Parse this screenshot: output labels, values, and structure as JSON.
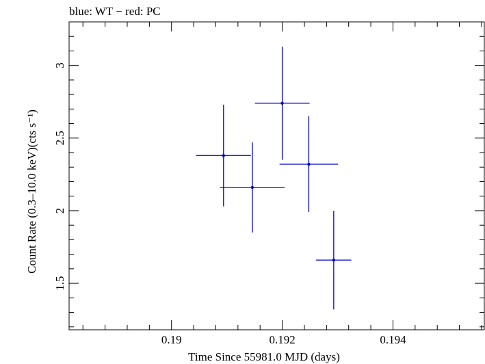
{
  "chart_data": {
    "type": "scatter",
    "title": "blue: WT − red: PC",
    "xlabel": "Time Since 55981.0 MJD (days)",
    "ylabel": "Count Rate (0.3–10.0 keV)(cts s⁻¹)",
    "xlim": [
      0.18815,
      0.19565
    ],
    "ylim": [
      1.18,
      3.3
    ],
    "x_ticks": [
      {
        "value": 0.19,
        "label": "0.19"
      },
      {
        "value": 0.192,
        "label": "0.192"
      },
      {
        "value": 0.194,
        "label": "0.194"
      }
    ],
    "y_ticks": [
      {
        "value": 1.5,
        "label": "1.5"
      },
      {
        "value": 2,
        "label": "2"
      },
      {
        "value": 2.5,
        "label": "2.5"
      },
      {
        "value": 3,
        "label": "3"
      }
    ],
    "grid": false,
    "series": [
      {
        "color": "#0000cc",
        "points": [
          {
            "x": 0.19094,
            "x_err": 0.0004941,
            "y": 2.38,
            "y_err": 0.35
          },
          {
            "x": 0.19146,
            "x_err": 0.0005823,
            "y": 2.16,
            "y_err": 0.31
          },
          {
            "x": 0.192,
            "x_err": 0.0004941,
            "y": 2.74,
            "y_err": 0.39
          },
          {
            "x": 0.19248,
            "x_err": 0.0005294,
            "y": 2.32,
            "y_err": 0.33
          },
          {
            "x": 0.19293,
            "x_err": 0.0003176,
            "y": 1.66,
            "y_err": 0.34
          }
        ]
      }
    ]
  }
}
